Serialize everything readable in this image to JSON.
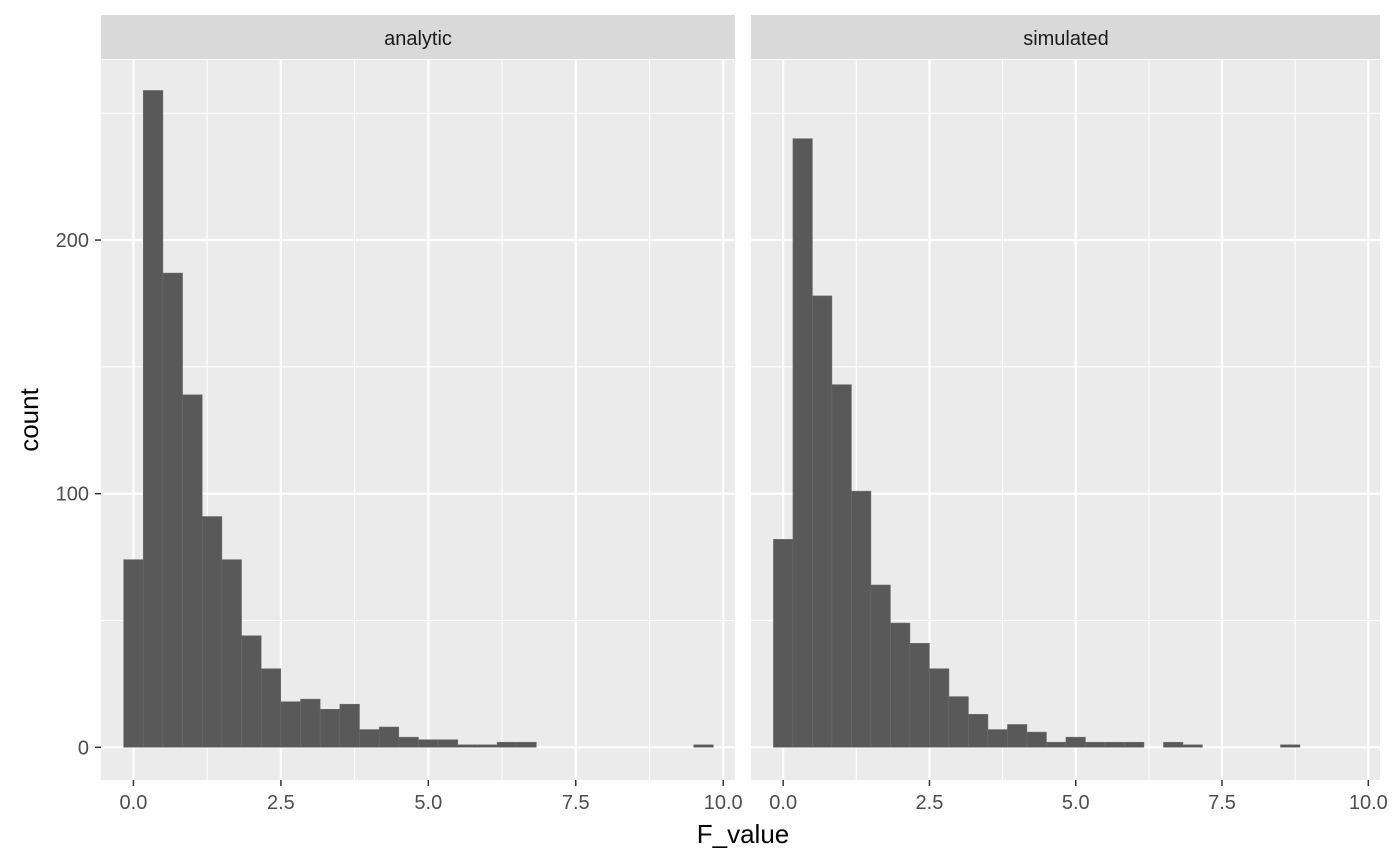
{
  "chart_data": {
    "type": "bar",
    "xlabel": "F_value",
    "ylabel": "count",
    "xlim": [
      -0.55,
      10.2
    ],
    "ylim": [
      -12.9,
      271
    ],
    "x_ticks": [
      0,
      2.5,
      5,
      7.5,
      10
    ],
    "x_tick_labels": [
      "0.0",
      "2.5",
      "5.0",
      "7.5",
      "10.0"
    ],
    "y_ticks": [
      0,
      100,
      200
    ],
    "y_tick_labels": [
      "0",
      "100",
      "200"
    ],
    "grid": true,
    "bar_color": "#595959",
    "panel_background": "#ebebeb",
    "strip_background": "#d9d9d9",
    "panels": [
      {
        "strip_label": "analytic",
        "bin_start": -0.1667,
        "bin_width": 0.3333,
        "counts": [
          74,
          259,
          187,
          139,
          91,
          74,
          44,
          31,
          18,
          19,
          15,
          17,
          7,
          8,
          4,
          3,
          3,
          1,
          1,
          2,
          2,
          0,
          0,
          0,
          0,
          0,
          0,
          0,
          0,
          1
        ]
      },
      {
        "strip_label": "simulated",
        "bin_start": -0.1667,
        "bin_width": 0.3333,
        "counts": [
          82,
          240,
          178,
          143,
          101,
          64,
          49,
          41,
          31,
          20,
          13,
          7,
          9,
          6,
          2,
          4,
          2,
          2,
          2,
          0,
          2,
          1,
          0,
          0,
          0,
          0,
          1,
          0,
          0,
          0
        ]
      }
    ]
  }
}
